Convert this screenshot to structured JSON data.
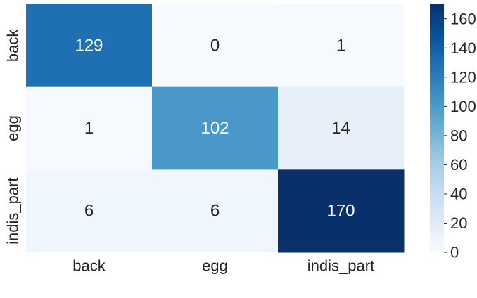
{
  "chart_data": {
    "type": "heatmap",
    "title": "",
    "xlabel": "",
    "ylabel": "",
    "x_categories": [
      "back",
      "egg",
      "indis_part"
    ],
    "y_categories": [
      "back",
      "egg",
      "indis_part"
    ],
    "values": [
      [
        129,
        0,
        1
      ],
      [
        1,
        102,
        14
      ],
      [
        6,
        6,
        170
      ]
    ],
    "colorbar": {
      "min": 0,
      "max": 170,
      "ticks": [
        0,
        20,
        40,
        60,
        80,
        100,
        120,
        140,
        160
      ],
      "colormap": "Blues"
    },
    "colors": {
      "low": "#f7fbff",
      "high": "#08306b"
    }
  }
}
